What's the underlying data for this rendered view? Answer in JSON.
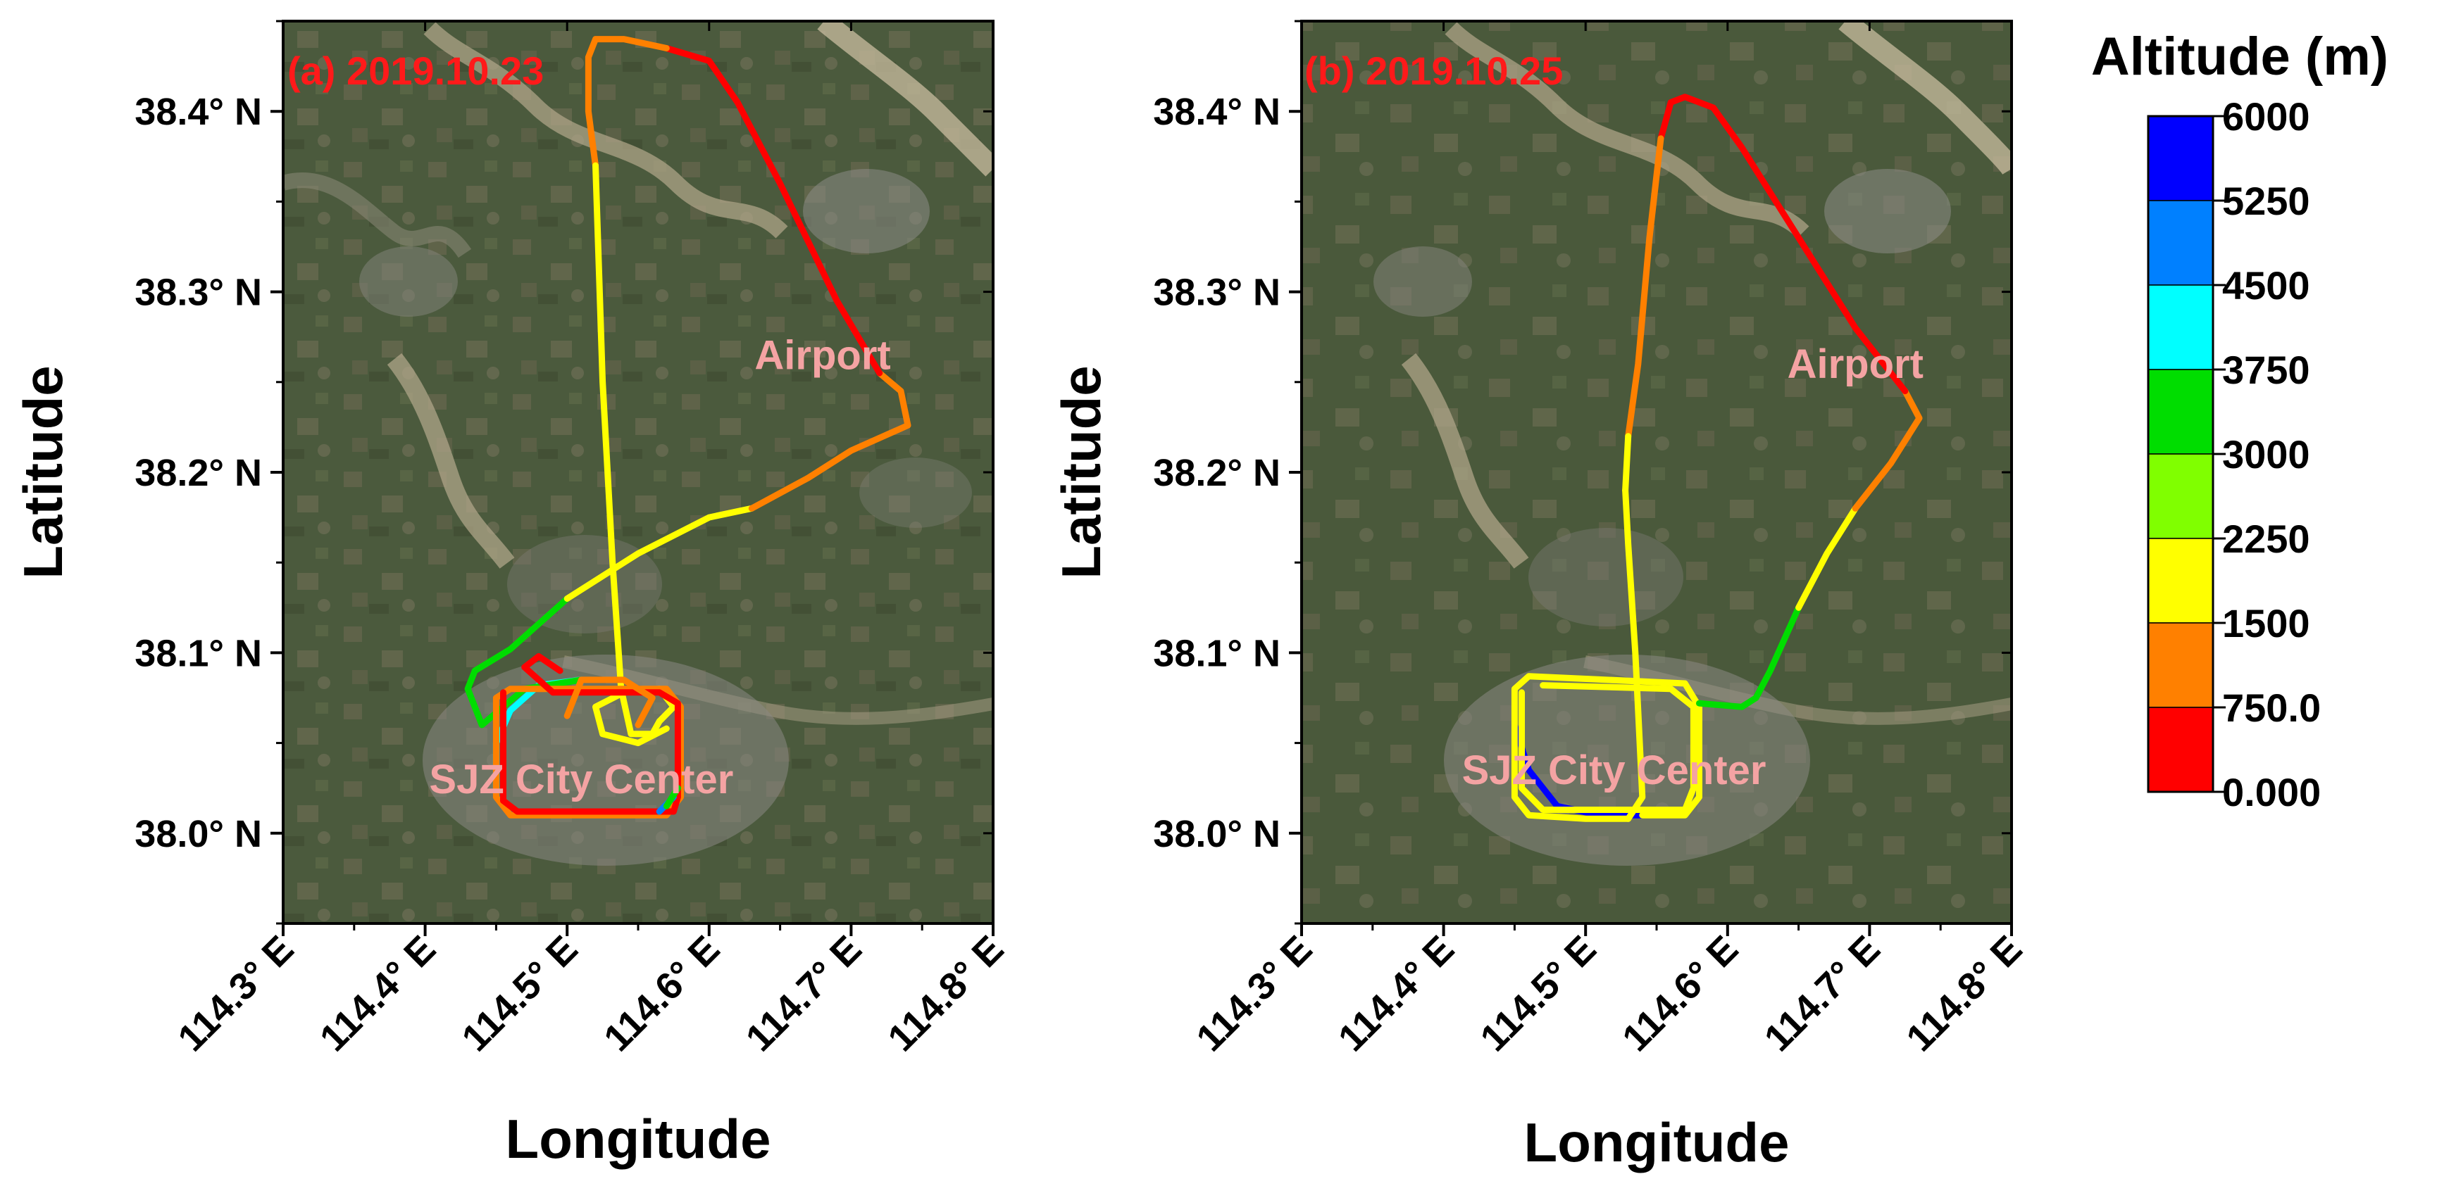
{
  "chart_data": [
    {
      "type": "map-track",
      "panel_label": "(a) 2019.10.23",
      "xlabel": "Longitude",
      "ylabel": "Latitude",
      "xlim": [
        114.3,
        114.8
      ],
      "ylim": [
        37.95,
        38.45
      ],
      "x_ticks": [
        114.3,
        114.4,
        114.5,
        114.6,
        114.7,
        114.8
      ],
      "y_ticks": [
        38.0,
        38.1,
        38.2,
        38.3,
        38.4
      ],
      "x_tick_labels": [
        "114.3° E",
        "114.4° E",
        "114.5° E",
        "114.6° E",
        "114.7° E",
        "114.8° E"
      ],
      "y_tick_labels": [
        "38.0° N",
        "38.1° N",
        "38.2° N",
        "38.3° N",
        "38.4° N"
      ],
      "annotations": [
        {
          "text": "Airport",
          "lon": 114.68,
          "lat": 38.265
        },
        {
          "text": "SJZ City Center",
          "lon": 114.51,
          "lat": 38.03
        }
      ],
      "track_segments": [
        {
          "altitude_m": 4200,
          "points": [
            [
              114.45,
              38.025
            ],
            [
              114.45,
              38.05
            ],
            [
              114.46,
              38.068
            ],
            [
              114.48,
              38.082
            ],
            [
              114.51,
              38.085
            ]
          ]
        },
        {
          "altitude_m": 3200,
          "points": [
            [
              114.51,
              38.085
            ],
            [
              114.47,
              38.08
            ],
            [
              114.44,
              38.06
            ],
            [
              114.43,
              38.08
            ],
            [
              114.435,
              38.09
            ],
            [
              114.46,
              38.102
            ],
            [
              114.5,
              38.13
            ]
          ]
        },
        {
          "altitude_m": 2000,
          "points": [
            [
              114.5,
              38.13
            ],
            [
              114.55,
              38.155
            ],
            [
              114.6,
              38.175
            ],
            [
              114.63,
              38.18
            ]
          ]
        },
        {
          "altitude_m": 1000,
          "points": [
            [
              114.63,
              38.18
            ],
            [
              114.67,
              38.197
            ],
            [
              114.7,
              38.212
            ],
            [
              114.74,
              38.226
            ],
            [
              114.735,
              38.245
            ],
            [
              114.72,
              38.255
            ]
          ]
        },
        {
          "altitude_m": 300,
          "points": [
            [
              114.72,
              38.255
            ],
            [
              114.69,
              38.295
            ],
            [
              114.65,
              38.36
            ],
            [
              114.62,
              38.405
            ],
            [
              114.6,
              38.428
            ],
            [
              114.57,
              38.435
            ]
          ]
        },
        {
          "altitude_m": 1000,
          "points": [
            [
              114.57,
              38.435
            ],
            [
              114.54,
              38.44
            ],
            [
              114.52,
              38.44
            ],
            [
              114.515,
              38.43
            ],
            [
              114.515,
              38.4
            ],
            [
              114.52,
              38.37
            ]
          ]
        },
        {
          "altitude_m": 1900,
          "points": [
            [
              114.52,
              38.37
            ],
            [
              114.525,
              38.25
            ],
            [
              114.532,
              38.15
            ],
            [
              114.538,
              38.08
            ],
            [
              114.545,
              38.055
            ],
            [
              114.56,
              38.055
            ],
            [
              114.565,
              38.062
            ]
          ]
        },
        {
          "altitude_m": 1900,
          "points": [
            [
              114.565,
              38.062
            ],
            [
              114.575,
              38.07
            ],
            [
              114.565,
              38.08
            ],
            [
              114.54,
              38.078
            ],
            [
              114.52,
              38.07
            ],
            [
              114.525,
              38.055
            ],
            [
              114.55,
              38.05
            ],
            [
              114.57,
              38.058
            ]
          ]
        },
        {
          "altitude_m": 1100,
          "points": [
            [
              114.45,
              38.075
            ],
            [
              114.45,
              38.02
            ],
            [
              114.46,
              38.01
            ],
            [
              114.57,
              38.01
            ],
            [
              114.58,
              38.02
            ],
            [
              114.58,
              38.07
            ],
            [
              114.57,
              38.08
            ],
            [
              114.46,
              38.08
            ],
            [
              114.45,
              38.075
            ]
          ]
        },
        {
          "altitude_m": 300,
          "points": [
            [
              114.455,
              38.078
            ],
            [
              114.455,
              38.018
            ],
            [
              114.465,
              38.012
            ],
            [
              114.575,
              38.012
            ],
            [
              114.578,
              38.02
            ],
            [
              114.578,
              38.072
            ],
            [
              114.565,
              38.078
            ],
            [
              114.49,
              38.078
            ]
          ]
        },
        {
          "altitude_m": 300,
          "points": [
            [
              114.49,
              38.078
            ],
            [
              114.47,
              38.092
            ],
            [
              114.48,
              38.098
            ],
            [
              114.495,
              38.09
            ]
          ]
        },
        {
          "altitude_m": 1000,
          "points": [
            [
              114.5,
              38.065
            ],
            [
              114.51,
              38.085
            ],
            [
              114.54,
              38.085
            ],
            [
              114.56,
              38.075
            ],
            [
              114.55,
              38.06
            ]
          ]
        },
        {
          "altitude_m": 4800,
          "points": [
            [
              114.565,
              38.012
            ],
            [
              114.575,
              38.02
            ]
          ]
        },
        {
          "altitude_m": 3300,
          "points": [
            [
              114.57,
              38.015
            ],
            [
              114.578,
              38.025
            ]
          ]
        }
      ]
    },
    {
      "type": "map-track",
      "panel_label": "(b) 2019.10.25",
      "xlabel": "Longitude",
      "ylabel": "Latitude",
      "xlim": [
        114.3,
        114.8
      ],
      "ylim": [
        37.95,
        38.45
      ],
      "x_ticks": [
        114.3,
        114.4,
        114.5,
        114.6,
        114.7,
        114.8
      ],
      "y_ticks": [
        38.0,
        38.1,
        38.2,
        38.3,
        38.4
      ],
      "x_tick_labels": [
        "114.3° E",
        "114.4° E",
        "114.5° E",
        "114.6° E",
        "114.7° E",
        "114.8° E"
      ],
      "y_tick_labels": [
        "38.0° N",
        "38.1° N",
        "38.2° N",
        "38.3° N",
        "38.4° N"
      ],
      "annotations": [
        {
          "text": "Airport",
          "lon": 114.69,
          "lat": 38.26
        },
        {
          "text": "SJZ City Center",
          "lon": 114.52,
          "lat": 38.035
        }
      ],
      "track_segments": [
        {
          "altitude_m": 5500,
          "points": [
            [
              114.45,
              38.06
            ],
            [
              114.46,
              38.035
            ],
            [
              114.48,
              38.015
            ],
            [
              114.51,
              38.01
            ],
            [
              114.54,
              38.01
            ]
          ]
        },
        {
          "altitude_m": 2000,
          "points": [
            [
              114.54,
              38.01
            ],
            [
              114.57,
              38.01
            ],
            [
              114.58,
              38.02
            ],
            [
              114.58,
              38.07
            ],
            [
              114.57,
              38.083
            ],
            [
              114.46,
              38.087
            ],
            [
              114.45,
              38.08
            ],
            [
              114.45,
              38.02
            ],
            [
              114.46,
              38.01
            ],
            [
              114.5,
              38.008
            ],
            [
              114.53,
              38.008
            ]
          ]
        },
        {
          "altitude_m": 2000,
          "points": [
            [
              114.455,
              38.078
            ],
            [
              114.455,
              38.025
            ],
            [
              114.47,
              38.013
            ],
            [
              114.57,
              38.013
            ],
            [
              114.576,
              38.025
            ],
            [
              114.576,
              38.07
            ],
            [
              114.56,
              38.08
            ],
            [
              114.47,
              38.082
            ]
          ]
        },
        {
          "altitude_m": 2000,
          "points": [
            [
              114.53,
              38.008
            ],
            [
              114.54,
              38.02
            ],
            [
              114.535,
              38.1
            ],
            [
              114.53,
              38.16
            ],
            [
              114.528,
              38.19
            ]
          ]
        },
        {
          "altitude_m": 3000,
          "points": [
            [
              114.58,
              38.072
            ],
            [
              114.61,
              38.07
            ],
            [
              114.62,
              38.075
            ],
            [
              114.63,
              38.09
            ],
            [
              114.65,
              38.125
            ]
          ]
        },
        {
          "altitude_m": 2000,
          "points": [
            [
              114.65,
              38.125
            ],
            [
              114.67,
              38.155
            ],
            [
              114.69,
              38.18
            ]
          ]
        },
        {
          "altitude_m": 1000,
          "points": [
            [
              114.69,
              38.18
            ],
            [
              114.715,
              38.205
            ],
            [
              114.735,
              38.23
            ],
            [
              114.725,
              38.245
            ]
          ]
        },
        {
          "altitude_m": 300,
          "points": [
            [
              114.725,
              38.245
            ],
            [
              114.69,
              38.28
            ],
            [
              114.65,
              38.33
            ],
            [
              114.61,
              38.38
            ],
            [
              114.59,
              38.402
            ],
            [
              114.57,
              38.408
            ],
            [
              114.56,
              38.405
            ],
            [
              114.553,
              38.385
            ]
          ]
        },
        {
          "altitude_m": 1000,
          "points": [
            [
              114.553,
              38.385
            ],
            [
              114.545,
              38.33
            ],
            [
              114.537,
              38.26
            ],
            [
              114.53,
              38.22
            ]
          ]
        },
        {
          "altitude_m": 1800,
          "points": [
            [
              114.53,
              38.22
            ],
            [
              114.528,
              38.19
            ]
          ]
        }
      ]
    }
  ],
  "colorbar": {
    "title": "Altitude (m)",
    "tick_labels": [
      "6000",
      "5250",
      "4500",
      "3750",
      "3000",
      "2250",
      "1500",
      "750.0",
      "0.000"
    ],
    "levels": [
      0,
      750,
      1500,
      2250,
      3000,
      3750,
      4500,
      5250,
      6000
    ],
    "colors": [
      "#ff0000",
      "#ff8000",
      "#ffff00",
      "#80ff00",
      "#00dd00",
      "#00ffff",
      "#0080ff",
      "#0000ff"
    ]
  },
  "map_colors": {
    "land": "#4a5a3c",
    "fields": "#7a7560",
    "city": "#8a8a85",
    "river": "#bdb095"
  }
}
